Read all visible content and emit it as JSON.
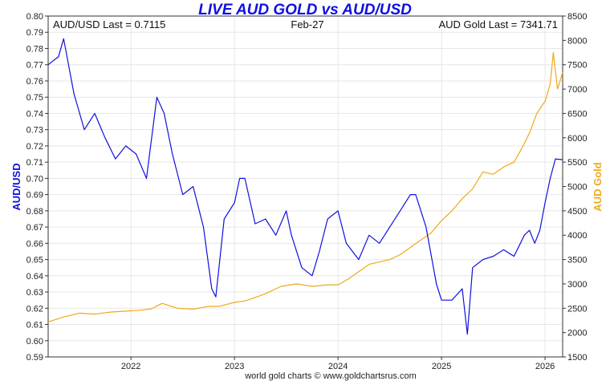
{
  "chart_data": {
    "type": "line",
    "title": "LIVE AUD GOLD vs AUD/USD",
    "header": {
      "left": "AUD/USD Last = 0.7115",
      "center": "Feb-27",
      "right": "AUD Gold Last = 7341.71"
    },
    "ylabel_left": "AUD/USD",
    "ylabel_right": "AUD Gold",
    "footer": "world gold charts © www.goldchartsrus.com",
    "x_ticks": [
      "2022",
      "2023",
      "2024",
      "2025",
      "2026"
    ],
    "x_tick_values": [
      2022.0,
      2023.0,
      2024.0,
      2025.0,
      2026.0
    ],
    "xlim": [
      2021.2,
      2026.17
    ],
    "y_left_ticks": [
      "0.59",
      "0.60",
      "0.61",
      "0.62",
      "0.63",
      "0.64",
      "0.65",
      "0.66",
      "0.67",
      "0.68",
      "0.69",
      "0.70",
      "0.71",
      "0.72",
      "0.73",
      "0.74",
      "0.75",
      "0.76",
      "0.77",
      "0.78",
      "0.79",
      "0.80"
    ],
    "ylim_left": [
      0.59,
      0.8
    ],
    "y_right_ticks": [
      "1500",
      "2000",
      "2500",
      "3000",
      "3500",
      "4000",
      "4500",
      "5000",
      "5500",
      "6000",
      "6500",
      "7000",
      "7500",
      "8000",
      "8500"
    ],
    "ylim_right": [
      1500,
      8500
    ],
    "grid": true,
    "series": [
      {
        "name": "AUD/USD",
        "axis": "left",
        "color": "#1010e0",
        "x": [
          2021.2,
          2021.3,
          2021.35,
          2021.45,
          2021.55,
          2021.65,
          2021.75,
          2021.85,
          2021.95,
          2022.05,
          2022.15,
          2022.25,
          2022.32,
          2022.4,
          2022.5,
          2022.6,
          2022.7,
          2022.78,
          2022.82,
          2022.9,
          2023.0,
          2023.05,
          2023.1,
          2023.2,
          2023.3,
          2023.4,
          2023.5,
          2023.55,
          2023.65,
          2023.75,
          2023.82,
          2023.9,
          2024.0,
          2024.08,
          2024.2,
          2024.3,
          2024.4,
          2024.5,
          2024.6,
          2024.7,
          2024.75,
          2024.85,
          2024.95,
          2025.0,
          2025.1,
          2025.2,
          2025.25,
          2025.3,
          2025.4,
          2025.5,
          2025.6,
          2025.7,
          2025.8,
          2025.85,
          2025.9,
          2025.95,
          2026.0,
          2026.05,
          2026.1,
          2026.17
        ],
        "values": [
          0.77,
          0.775,
          0.786,
          0.752,
          0.73,
          0.74,
          0.725,
          0.712,
          0.72,
          0.715,
          0.7,
          0.75,
          0.74,
          0.715,
          0.69,
          0.695,
          0.67,
          0.632,
          0.627,
          0.675,
          0.685,
          0.7,
          0.7,
          0.672,
          0.675,
          0.665,
          0.68,
          0.665,
          0.645,
          0.64,
          0.655,
          0.675,
          0.68,
          0.66,
          0.65,
          0.665,
          0.66,
          0.67,
          0.68,
          0.69,
          0.69,
          0.67,
          0.635,
          0.625,
          0.625,
          0.632,
          0.604,
          0.645,
          0.65,
          0.652,
          0.656,
          0.652,
          0.665,
          0.668,
          0.66,
          0.668,
          0.685,
          0.7,
          0.712,
          0.7115
        ]
      },
      {
        "name": "AUD Gold",
        "axis": "right",
        "color": "#f0a818",
        "x": [
          2021.2,
          2021.35,
          2021.5,
          2021.65,
          2021.8,
          2021.95,
          2022.1,
          2022.2,
          2022.3,
          2022.45,
          2022.6,
          2022.75,
          2022.85,
          2023.0,
          2023.1,
          2023.2,
          2023.3,
          2023.45,
          2023.6,
          2023.75,
          2023.9,
          2024.0,
          2024.1,
          2024.2,
          2024.3,
          2024.4,
          2024.5,
          2024.6,
          2024.7,
          2024.8,
          2024.9,
          2025.0,
          2025.1,
          2025.2,
          2025.3,
          2025.4,
          2025.5,
          2025.6,
          2025.7,
          2025.78,
          2025.85,
          2025.92,
          2026.0,
          2026.05,
          2026.08,
          2026.12,
          2026.17
        ],
        "values": [
          2220,
          2320,
          2400,
          2380,
          2420,
          2440,
          2460,
          2490,
          2600,
          2500,
          2480,
          2540,
          2540,
          2620,
          2650,
          2720,
          2800,
          2950,
          3000,
          2950,
          2980,
          2980,
          3100,
          3250,
          3400,
          3450,
          3500,
          3600,
          3750,
          3900,
          4050,
          4300,
          4500,
          4750,
          4950,
          5300,
          5250,
          5400,
          5500,
          5800,
          6100,
          6500,
          6750,
          7100,
          7750,
          7000,
          7341.71
        ]
      }
    ]
  }
}
